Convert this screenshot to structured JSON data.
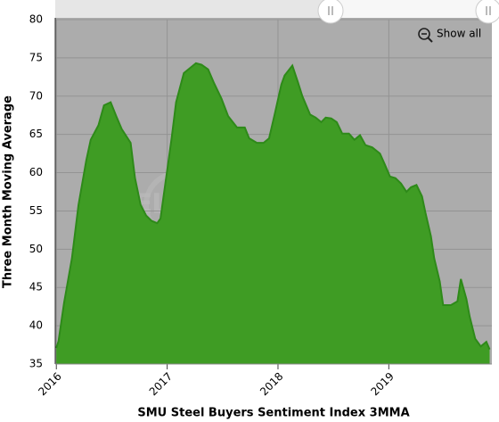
{
  "chart_data": {
    "type": "area",
    "title": "SMU Steel Buyers Sentiment Index 3MMA",
    "y_label": "Three Month Moving Average",
    "watermark": "STEEL MARKET UPDATE",
    "show_all_label": "Show all",
    "color": "#3f9c24",
    "line_color": "#2e8a19",
    "grid": true,
    "x": [
      2016.0,
      2016.02,
      2016.07,
      2016.14,
      2016.2,
      2016.27,
      2016.31,
      2016.38,
      2016.43,
      2016.49,
      2016.54,
      2016.59,
      2016.67,
      2016.71,
      2016.76,
      2016.81,
      2016.86,
      2016.91,
      2016.94,
      2016.99,
      2017.04,
      2017.08,
      2017.15,
      2017.2,
      2017.26,
      2017.31,
      2017.37,
      2017.42,
      2017.49,
      2017.55,
      2017.63,
      2017.7,
      2017.74,
      2017.81,
      2017.87,
      2017.92,
      2017.97,
      2018.03,
      2018.06,
      2018.13,
      2018.18,
      2018.22,
      2018.29,
      2018.34,
      2018.39,
      2018.43,
      2018.48,
      2018.53,
      2018.58,
      2018.64,
      2018.69,
      2018.74,
      2018.79,
      2018.85,
      2018.92,
      2018.96,
      2019.01,
      2019.06,
      2019.11,
      2019.16,
      2019.2,
      2019.25,
      2019.3,
      2019.33,
      2019.38,
      2019.41,
      2019.46,
      2019.49,
      2019.56,
      2019.62,
      2019.65,
      2019.7,
      2019.73,
      2019.78,
      2019.83,
      2019.88,
      2019.91
    ],
    "values": [
      37.1,
      38,
      43,
      48.8,
      55.8,
      61.6,
      64.3,
      66.2,
      68.8,
      69.2,
      67.4,
      65.7,
      63.9,
      59.3,
      55.8,
      54.4,
      53.7,
      53.4,
      54,
      59.3,
      64.5,
      69.2,
      73,
      73.6,
      74.3,
      74.1,
      73.5,
      71.8,
      69.7,
      67.4,
      65.9,
      65.9,
      64.5,
      63.9,
      63.9,
      64.5,
      67.6,
      71.5,
      72.7,
      74,
      71.8,
      70,
      67.6,
      67.2,
      66.6,
      67.2,
      67.1,
      66.6,
      65.1,
      65.1,
      64.3,
      64.9,
      63.6,
      63.3,
      62.5,
      61.2,
      59.5,
      59.3,
      58.6,
      57.5,
      58.1,
      58.4,
      56.9,
      54.8,
      51.7,
      48.8,
      45.8,
      42.7,
      42.7,
      43.2,
      46.1,
      43.5,
      41.2,
      38.3,
      37.3,
      37.9,
      36.9
    ],
    "xlim": [
      2015.99,
      2019.93
    ],
    "xticks": [
      2016,
      2017,
      2018,
      2019
    ],
    "ylim": [
      35,
      80
    ],
    "yticks": [
      35,
      40,
      45,
      50,
      55,
      60,
      65,
      70,
      75,
      80
    ]
  }
}
